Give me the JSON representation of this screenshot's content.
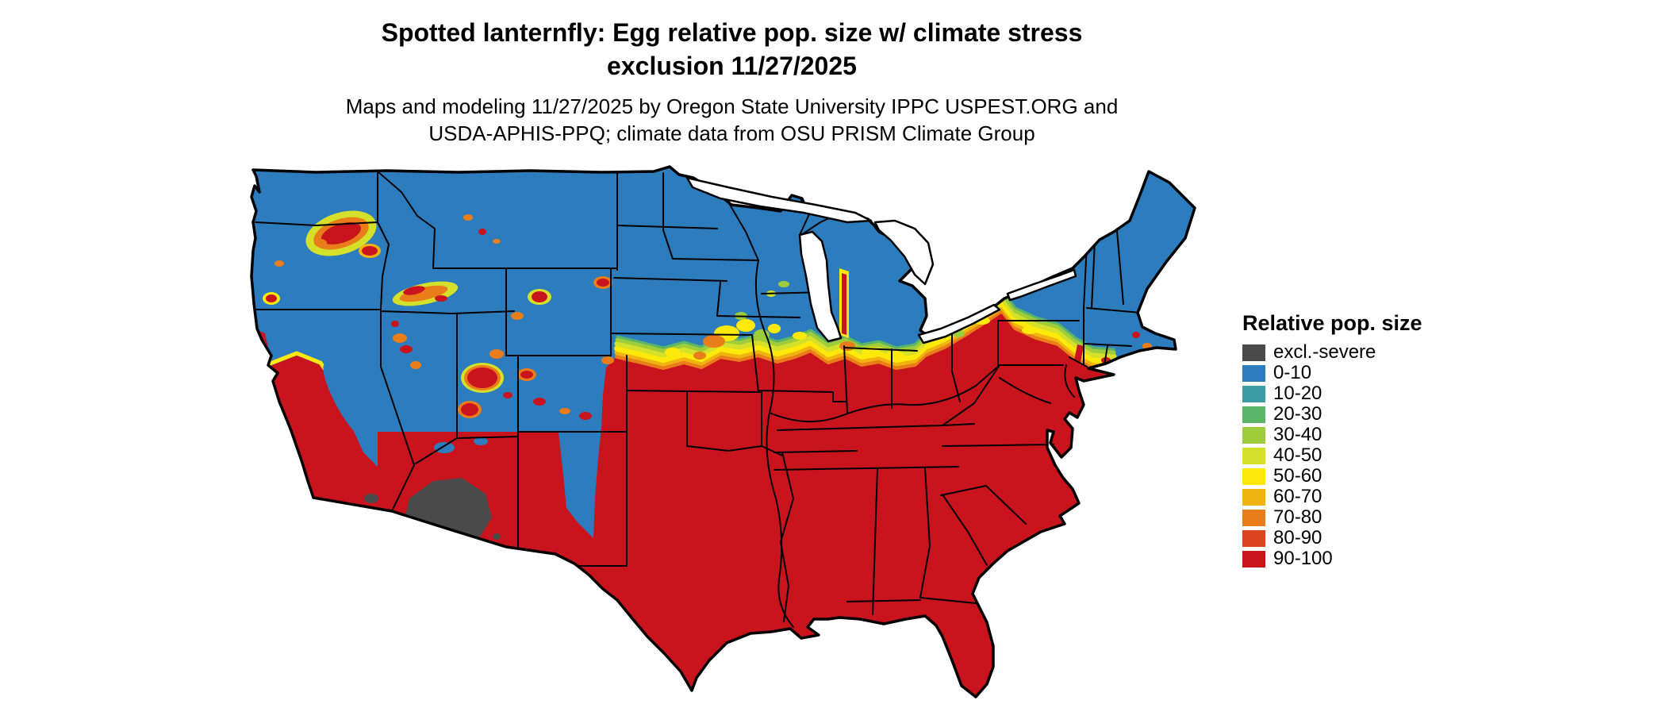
{
  "title": {
    "line1": "Spotted lanternfly: Egg relative pop. size w/ climate stress",
    "line2": "exclusion 11/27/2025"
  },
  "subtitle": {
    "line1": "Maps and modeling 11/27/2025 by Oregon State University IPPC USPEST.ORG and",
    "line2": "USDA-APHIS-PPQ; climate data from OSU PRISM Climate Group"
  },
  "legend": {
    "title": "Relative pop. size",
    "items": [
      {
        "key": "excl",
        "label": "excl.-severe",
        "color": "#4a4a4a"
      },
      {
        "key": "r0",
        "label": "0-10",
        "color": "#2c7cbe"
      },
      {
        "key": "r10",
        "label": "10-20",
        "color": "#3d9ba4"
      },
      {
        "key": "r20",
        "label": "20-30",
        "color": "#5ab568"
      },
      {
        "key": "r30",
        "label": "30-40",
        "color": "#9fcc3b"
      },
      {
        "key": "r40",
        "label": "40-50",
        "color": "#d4e029"
      },
      {
        "key": "r50",
        "label": "50-60",
        "color": "#ffe90a"
      },
      {
        "key": "r60",
        "label": "60-70",
        "color": "#f0b310"
      },
      {
        "key": "r70",
        "label": "70-80",
        "color": "#e87d19"
      },
      {
        "key": "r80",
        "label": "80-90",
        "color": "#db4420"
      },
      {
        "key": "r90",
        "label": "90-100",
        "color": "#c9131d"
      }
    ]
  },
  "map": {
    "area": "Contiguous United States",
    "date_shown": "11/27/2025",
    "zones": [
      {
        "zone": "northern states, Rockies and high mountain west",
        "value": "0-10"
      },
      {
        "zone": "southern, central and eastern states",
        "value": "90-100"
      },
      {
        "zone": "central transition band from Nebraska to the Atlantic coast",
        "value": "10-80"
      },
      {
        "zone": "southern Arizona desert",
        "value": "excl.-severe"
      }
    ]
  }
}
